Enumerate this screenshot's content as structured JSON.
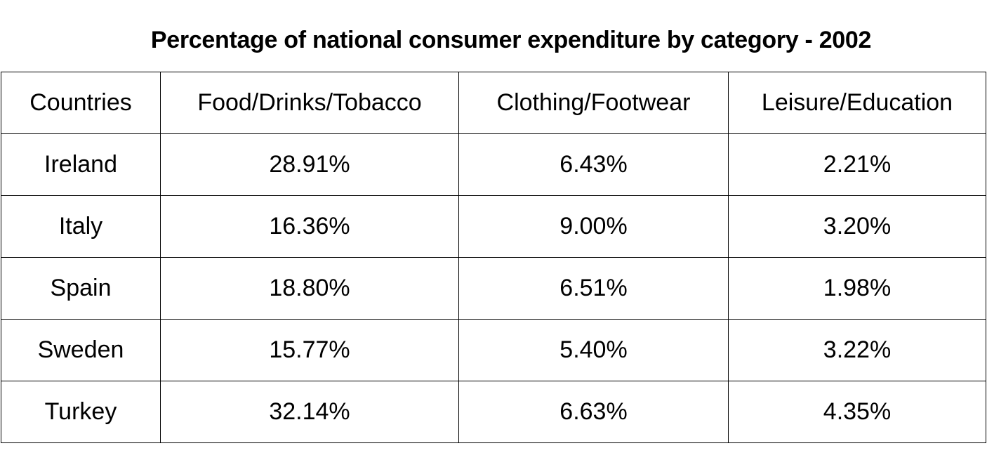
{
  "chart_data": {
    "type": "table",
    "title": "Percentage of national consumer expenditure by category - 2002",
    "columns": [
      "Countries",
      "Food/Drinks/Tobacco",
      "Clothing/Footwear",
      "Leisure/Education"
    ],
    "rows": [
      [
        "Ireland",
        "28.91%",
        "6.43%",
        "2.21%"
      ],
      [
        "Italy",
        "16.36%",
        "9.00%",
        "3.20%"
      ],
      [
        "Spain",
        "18.80%",
        "6.51%",
        "1.98%"
      ],
      [
        "Sweden",
        "15.77%",
        "5.40%",
        "3.22%"
      ],
      [
        "Turkey",
        "32.14%",
        "6.63%",
        "4.35%"
      ]
    ]
  }
}
